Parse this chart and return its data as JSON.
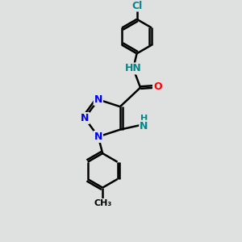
{
  "background_color": "#dfe0e0",
  "atom_colors": {
    "C": "#000000",
    "N_triazole": "#0000ee",
    "N_amide": "#008888",
    "O": "#ff0000",
    "Cl": "#008888",
    "N_amine": "#008888"
  },
  "bond_color": "#000000",
  "bond_width": 1.8,
  "figsize": [
    3.0,
    3.0
  ],
  "dpi": 100,
  "xlim": [
    0,
    10
  ],
  "ylim": [
    0,
    10
  ]
}
